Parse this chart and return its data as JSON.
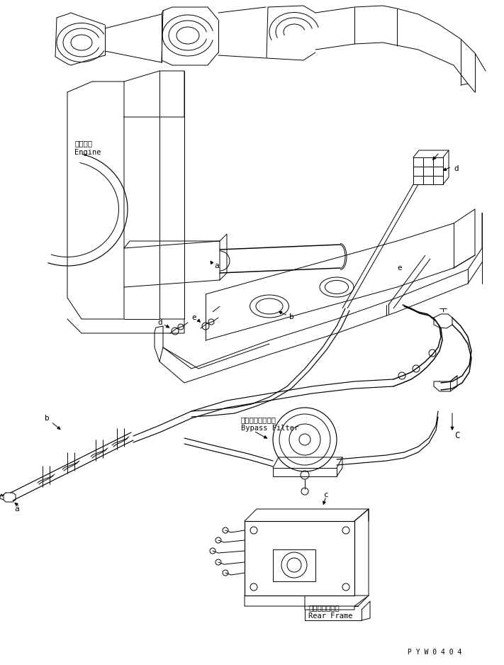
{
  "figsize": [
    7.11,
    9.38
  ],
  "dpi": 100,
  "background_color": "#ffffff",
  "line_color": "#000000",
  "part_code": "P Y W 0 4 0 4",
  "labels": {
    "engine_jp": "エンジン",
    "engine_en": "Engine",
    "bypass_jp": "バイパスフィルタ",
    "bypass_en": "Bypass Filter",
    "rear_frame_jp": "リヤーフレーム",
    "rear_frame_en": "Rear Frame"
  }
}
